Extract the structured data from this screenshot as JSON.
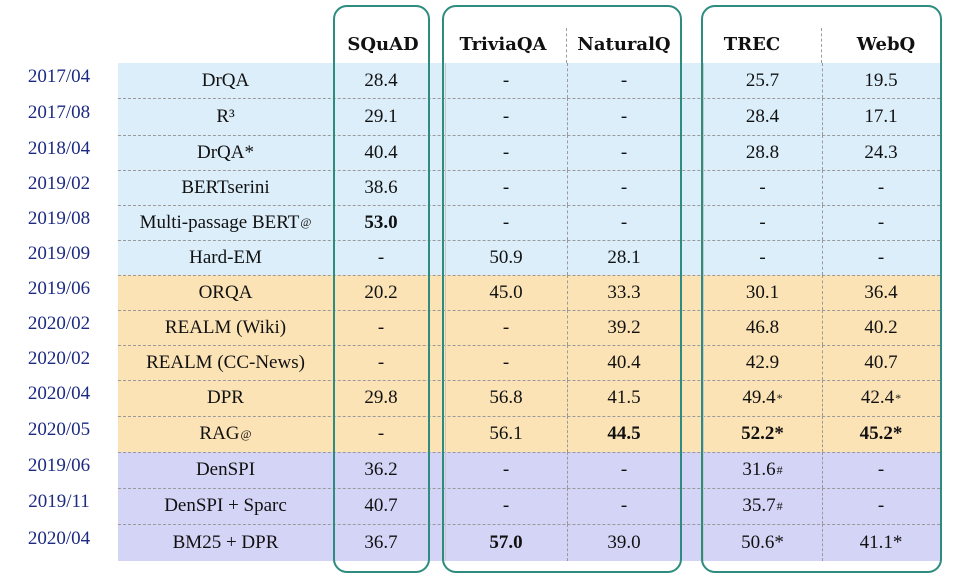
{
  "headers": [
    "SQuAD",
    "TriviaQA",
    "NaturalQ",
    "TREC",
    "WebQ"
  ],
  "colors": {
    "blue": "#dbeefa",
    "orange": "#fbe3b6",
    "purple": "#d4d4f6",
    "date_text": "#1c2a82",
    "box": "#2e8b7f"
  },
  "rows": [
    {
      "date": "2017/04",
      "model": "DrQA",
      "group": "blue",
      "cells": [
        {
          "v": "28.4"
        },
        {
          "v": "-"
        },
        {
          "v": "-"
        },
        {
          "v": "25.7"
        },
        {
          "v": "19.5"
        }
      ]
    },
    {
      "date": "2017/08",
      "model": "R³",
      "group": "blue",
      "cells": [
        {
          "v": "29.1"
        },
        {
          "v": "-"
        },
        {
          "v": "-"
        },
        {
          "v": "28.4"
        },
        {
          "v": "17.1"
        }
      ]
    },
    {
      "date": "2018/04",
      "model": "DrQA*",
      "group": "blue",
      "cells": [
        {
          "v": "40.4"
        },
        {
          "v": "-"
        },
        {
          "v": "-"
        },
        {
          "v": "28.8"
        },
        {
          "v": "24.3"
        }
      ]
    },
    {
      "date": "2019/02",
      "model": "BERTserini",
      "group": "blue",
      "cells": [
        {
          "v": "38.6"
        },
        {
          "v": "-"
        },
        {
          "v": "-"
        },
        {
          "v": "-"
        },
        {
          "v": "-"
        }
      ]
    },
    {
      "date": "2019/08",
      "model": "Multi-passage BERT",
      "model_sup": "@",
      "group": "blue",
      "cells": [
        {
          "v": "53.0",
          "b": true
        },
        {
          "v": "-"
        },
        {
          "v": "-"
        },
        {
          "v": "-"
        },
        {
          "v": "-"
        }
      ]
    },
    {
      "date": "2019/09",
      "model": "Hard-EM",
      "group": "blue",
      "cells": [
        {
          "v": "-"
        },
        {
          "v": "50.9"
        },
        {
          "v": "28.1"
        },
        {
          "v": "-"
        },
        {
          "v": "-"
        }
      ]
    },
    {
      "date": "2019/06",
      "model": "ORQA",
      "group": "orange",
      "cells": [
        {
          "v": "20.2"
        },
        {
          "v": "45.0"
        },
        {
          "v": "33.3"
        },
        {
          "v": "30.1"
        },
        {
          "v": "36.4"
        }
      ]
    },
    {
      "date": "2020/02",
      "model": "REALM (Wiki)",
      "group": "orange",
      "cells": [
        {
          "v": "-"
        },
        {
          "v": "-"
        },
        {
          "v": "39.2"
        },
        {
          "v": "46.8"
        },
        {
          "v": "40.2"
        }
      ]
    },
    {
      "date": "2020/02",
      "model": "REALM (CC-News)",
      "group": "orange",
      "cells": [
        {
          "v": "-"
        },
        {
          "v": "-"
        },
        {
          "v": "40.4"
        },
        {
          "v": "42.9"
        },
        {
          "v": "40.7"
        }
      ]
    },
    {
      "date": "2020/04",
      "model": "DPR",
      "group": "orange",
      "cells": [
        {
          "v": "29.8"
        },
        {
          "v": "56.8"
        },
        {
          "v": "41.5"
        },
        {
          "v": "49.4",
          "sup": "*"
        },
        {
          "v": "42.4",
          "sup": "*"
        }
      ]
    },
    {
      "date": "2020/05",
      "model": "RAG",
      "model_sup": "@",
      "group": "orange",
      "cells": [
        {
          "v": "-"
        },
        {
          "v": "56.1"
        },
        {
          "v": "44.5",
          "b": true
        },
        {
          "v": "52.2*",
          "b": true
        },
        {
          "v": "45.2*",
          "b": true
        }
      ]
    },
    {
      "date": "2019/06",
      "model": "DenSPI",
      "group": "purple",
      "cells": [
        {
          "v": "36.2"
        },
        {
          "v": "-"
        },
        {
          "v": "-"
        },
        {
          "v": "31.6",
          "sup": "#"
        },
        {
          "v": "-"
        }
      ]
    },
    {
      "date": "2019/11",
      "model": "DenSPI + Sparc",
      "group": "purple",
      "cells": [
        {
          "v": "40.7"
        },
        {
          "v": "-"
        },
        {
          "v": "-"
        },
        {
          "v": "35.7",
          "sup": "#"
        },
        {
          "v": "-"
        }
      ]
    },
    {
      "date": "2020/04",
      "model": "BM25 + DPR",
      "group": "purple",
      "cells": [
        {
          "v": "36.7"
        },
        {
          "v": "57.0",
          "b": true
        },
        {
          "v": "39.0"
        },
        {
          "v": "50.6*"
        },
        {
          "v": "41.1*"
        }
      ]
    }
  ]
}
